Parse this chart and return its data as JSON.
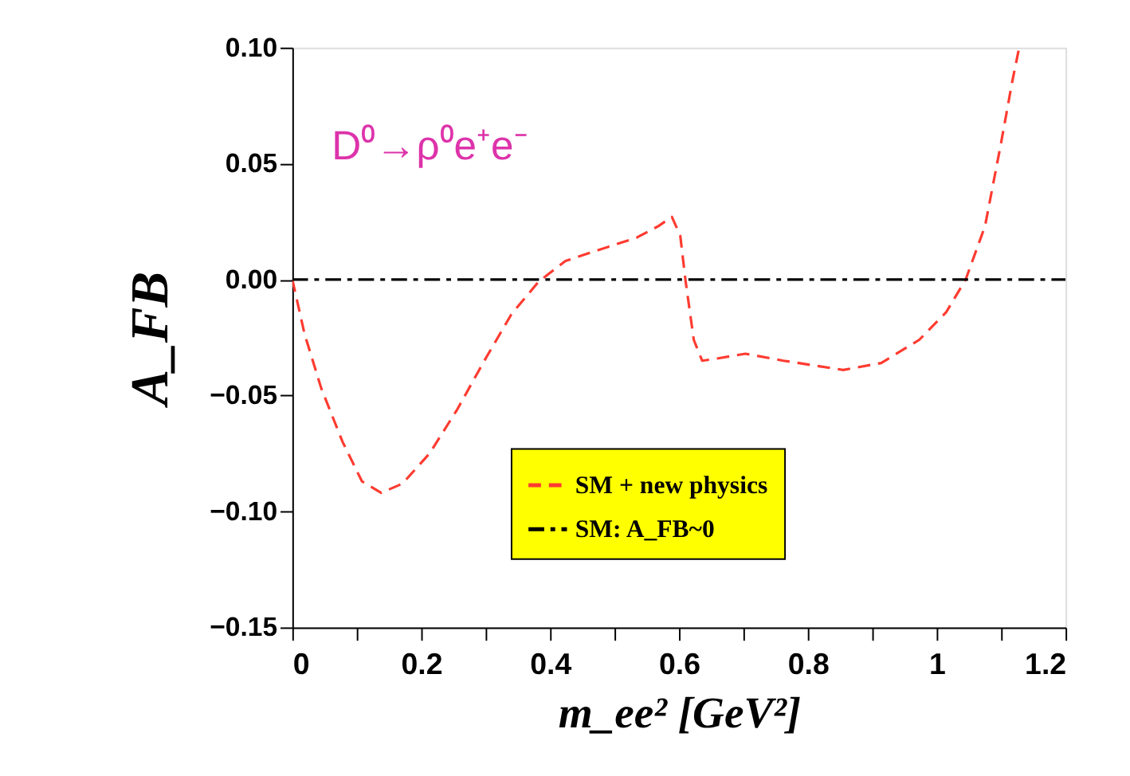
{
  "chart_data": {
    "type": "line",
    "xlabel": "m_ee² [GeV²]",
    "ylabel": "A_FB",
    "annotations": [
      "D⁰→ρ⁰e⁺e⁻"
    ],
    "series": [
      {
        "name": "SM + new physics",
        "color": "#ff3b30",
        "line_style": "dashed",
        "x": [
          0,
          0.019,
          0.045,
          0.078,
          0.108,
          0.138,
          0.171,
          0.213,
          0.256,
          0.298,
          0.34,
          0.382,
          0.424,
          0.467,
          0.534,
          0.568,
          0.589,
          0.602,
          0.61,
          0.623,
          0.636,
          0.661,
          0.703,
          0.762,
          0.855,
          0.914,
          0.973,
          1.015,
          1.045,
          1.075,
          1.1,
          1.117,
          1.128
        ],
        "values": [
          0,
          -0.0235,
          -0.047,
          -0.07,
          -0.087,
          -0.092,
          -0.088,
          -0.075,
          -0.056,
          -0.035,
          -0.015,
          -0.001,
          0.008,
          0.012,
          0.018,
          0.023,
          0.027,
          0.019,
          0.0,
          -0.026,
          -0.035,
          -0.034,
          -0.032,
          -0.035,
          -0.039,
          -0.036,
          -0.026,
          -0.014,
          0,
          0.023,
          0.059,
          0.085,
          0.1
        ]
      },
      {
        "name": "SM: A_FB~0",
        "color": "#000000",
        "line_style": "dashdot",
        "x": [
          0,
          1.2
        ],
        "values": [
          0,
          0
        ]
      }
    ],
    "xlim": [
      0,
      1.2
    ],
    "ylim": [
      -0.15,
      0.1
    ],
    "xticks": [
      0,
      {
        "value": 0.1,
        "label": null
      },
      0.2,
      {
        "value": 0.3,
        "label": null
      },
      0.4,
      {
        "value": 0.5,
        "label": null
      },
      0.6,
      {
        "value": 0.7,
        "label": null
      },
      0.8,
      {
        "value": 0.9,
        "label": null
      },
      1,
      {
        "value": 1.1,
        "label": null
      },
      1.2
    ],
    "yticks": [
      {
        "value": -0.15,
        "label": "−0.15"
      },
      {
        "value": -0.1,
        "label": "−0.10"
      },
      {
        "value": -0.05,
        "label": "−0.05"
      },
      {
        "value": 0,
        "label": "0.00"
      },
      {
        "value": 0.05,
        "label": "0.05"
      },
      {
        "value": 0.1,
        "label": "0.10"
      }
    ],
    "legend": "bottom right",
    "grid": false,
    "marker": "none"
  }
}
